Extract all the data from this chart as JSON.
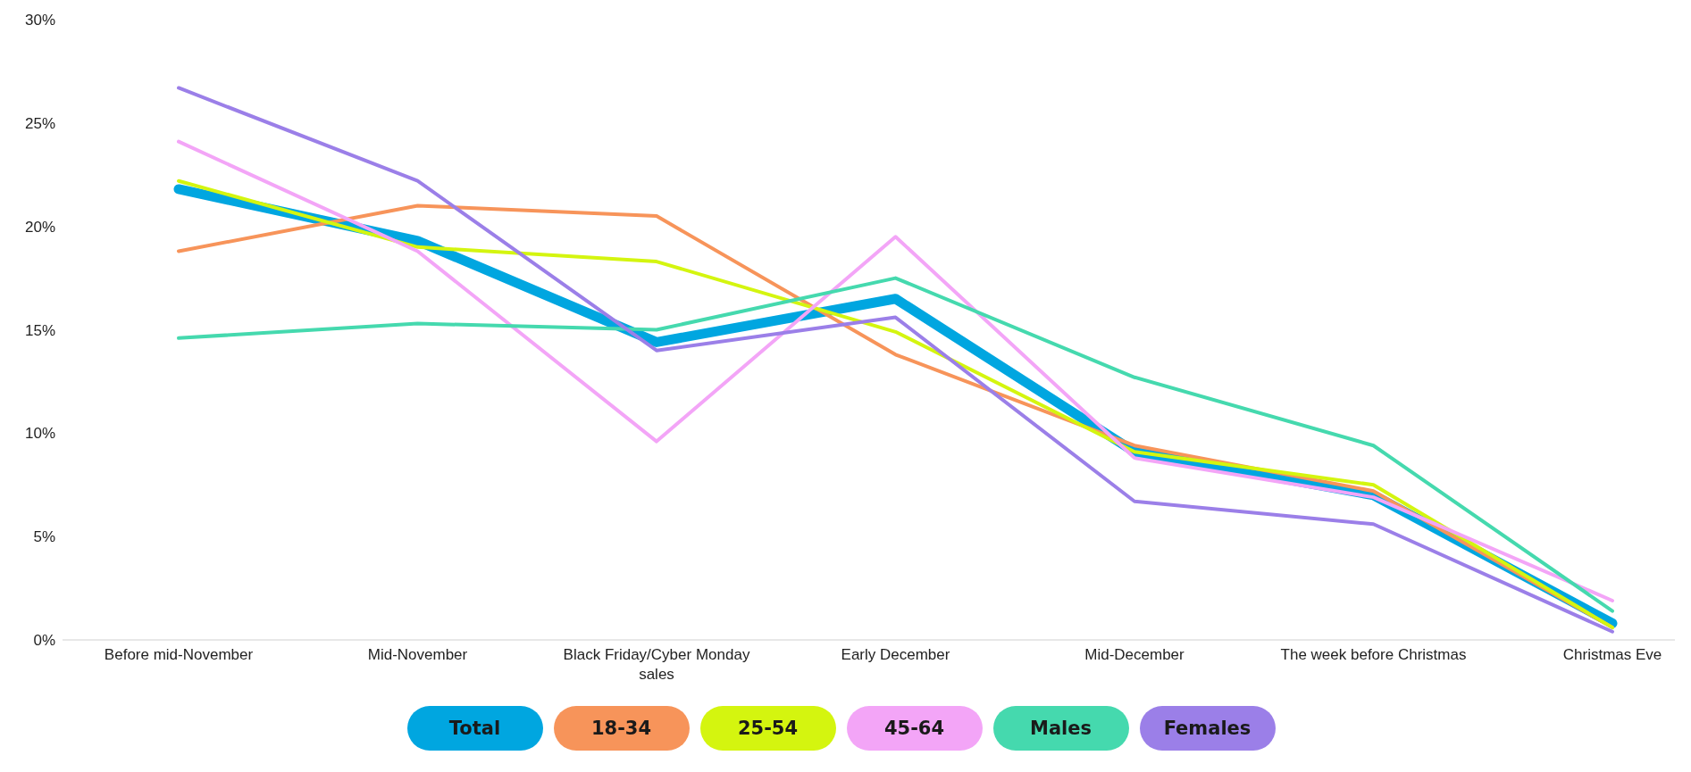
{
  "chart_data": {
    "type": "line",
    "categories": [
      "Before mid-November",
      "Mid-November",
      "Black Friday/Cyber Monday sales",
      "Early December",
      "Mid-December",
      "The week before Christmas",
      "Christmas Eve"
    ],
    "series": [
      {
        "name": "Total",
        "color": "#00a6e0",
        "values": [
          21.8,
          19.3,
          14.4,
          16.5,
          9.1,
          7.0,
          0.8
        ]
      },
      {
        "name": "18-34",
        "color": "#f7945a",
        "values": [
          18.8,
          21.0,
          20.5,
          13.8,
          9.4,
          7.2,
          0.6
        ]
      },
      {
        "name": "25-54",
        "color": "#d4f50f",
        "values": [
          22.2,
          19.0,
          18.3,
          14.9,
          9.1,
          7.5,
          0.6
        ]
      },
      {
        "name": "45-64",
        "color": "#f3a5f7",
        "values": [
          24.1,
          18.8,
          9.6,
          19.5,
          8.8,
          6.9,
          1.9
        ]
      },
      {
        "name": "Males",
        "color": "#45d9ae",
        "values": [
          14.6,
          15.3,
          15.0,
          17.5,
          12.7,
          9.4,
          1.4
        ]
      },
      {
        "name": "Females",
        "color": "#9b7fe8",
        "values": [
          26.7,
          22.2,
          14.0,
          15.6,
          6.7,
          5.6,
          0.4
        ]
      }
    ],
    "ylim": [
      0,
      30
    ],
    "yticks": [
      {
        "value": 0,
        "label": "0%"
      },
      {
        "value": 5,
        "label": "5%"
      },
      {
        "value": 10,
        "label": "10%"
      },
      {
        "value": 15,
        "label": "15%"
      },
      {
        "value": 20,
        "label": "20%"
      },
      {
        "value": 25,
        "label": "25%"
      },
      {
        "value": 30,
        "label": "30%"
      }
    ],
    "grid": false,
    "legend": "bottom",
    "marker": "none",
    "line_style": "solid"
  }
}
